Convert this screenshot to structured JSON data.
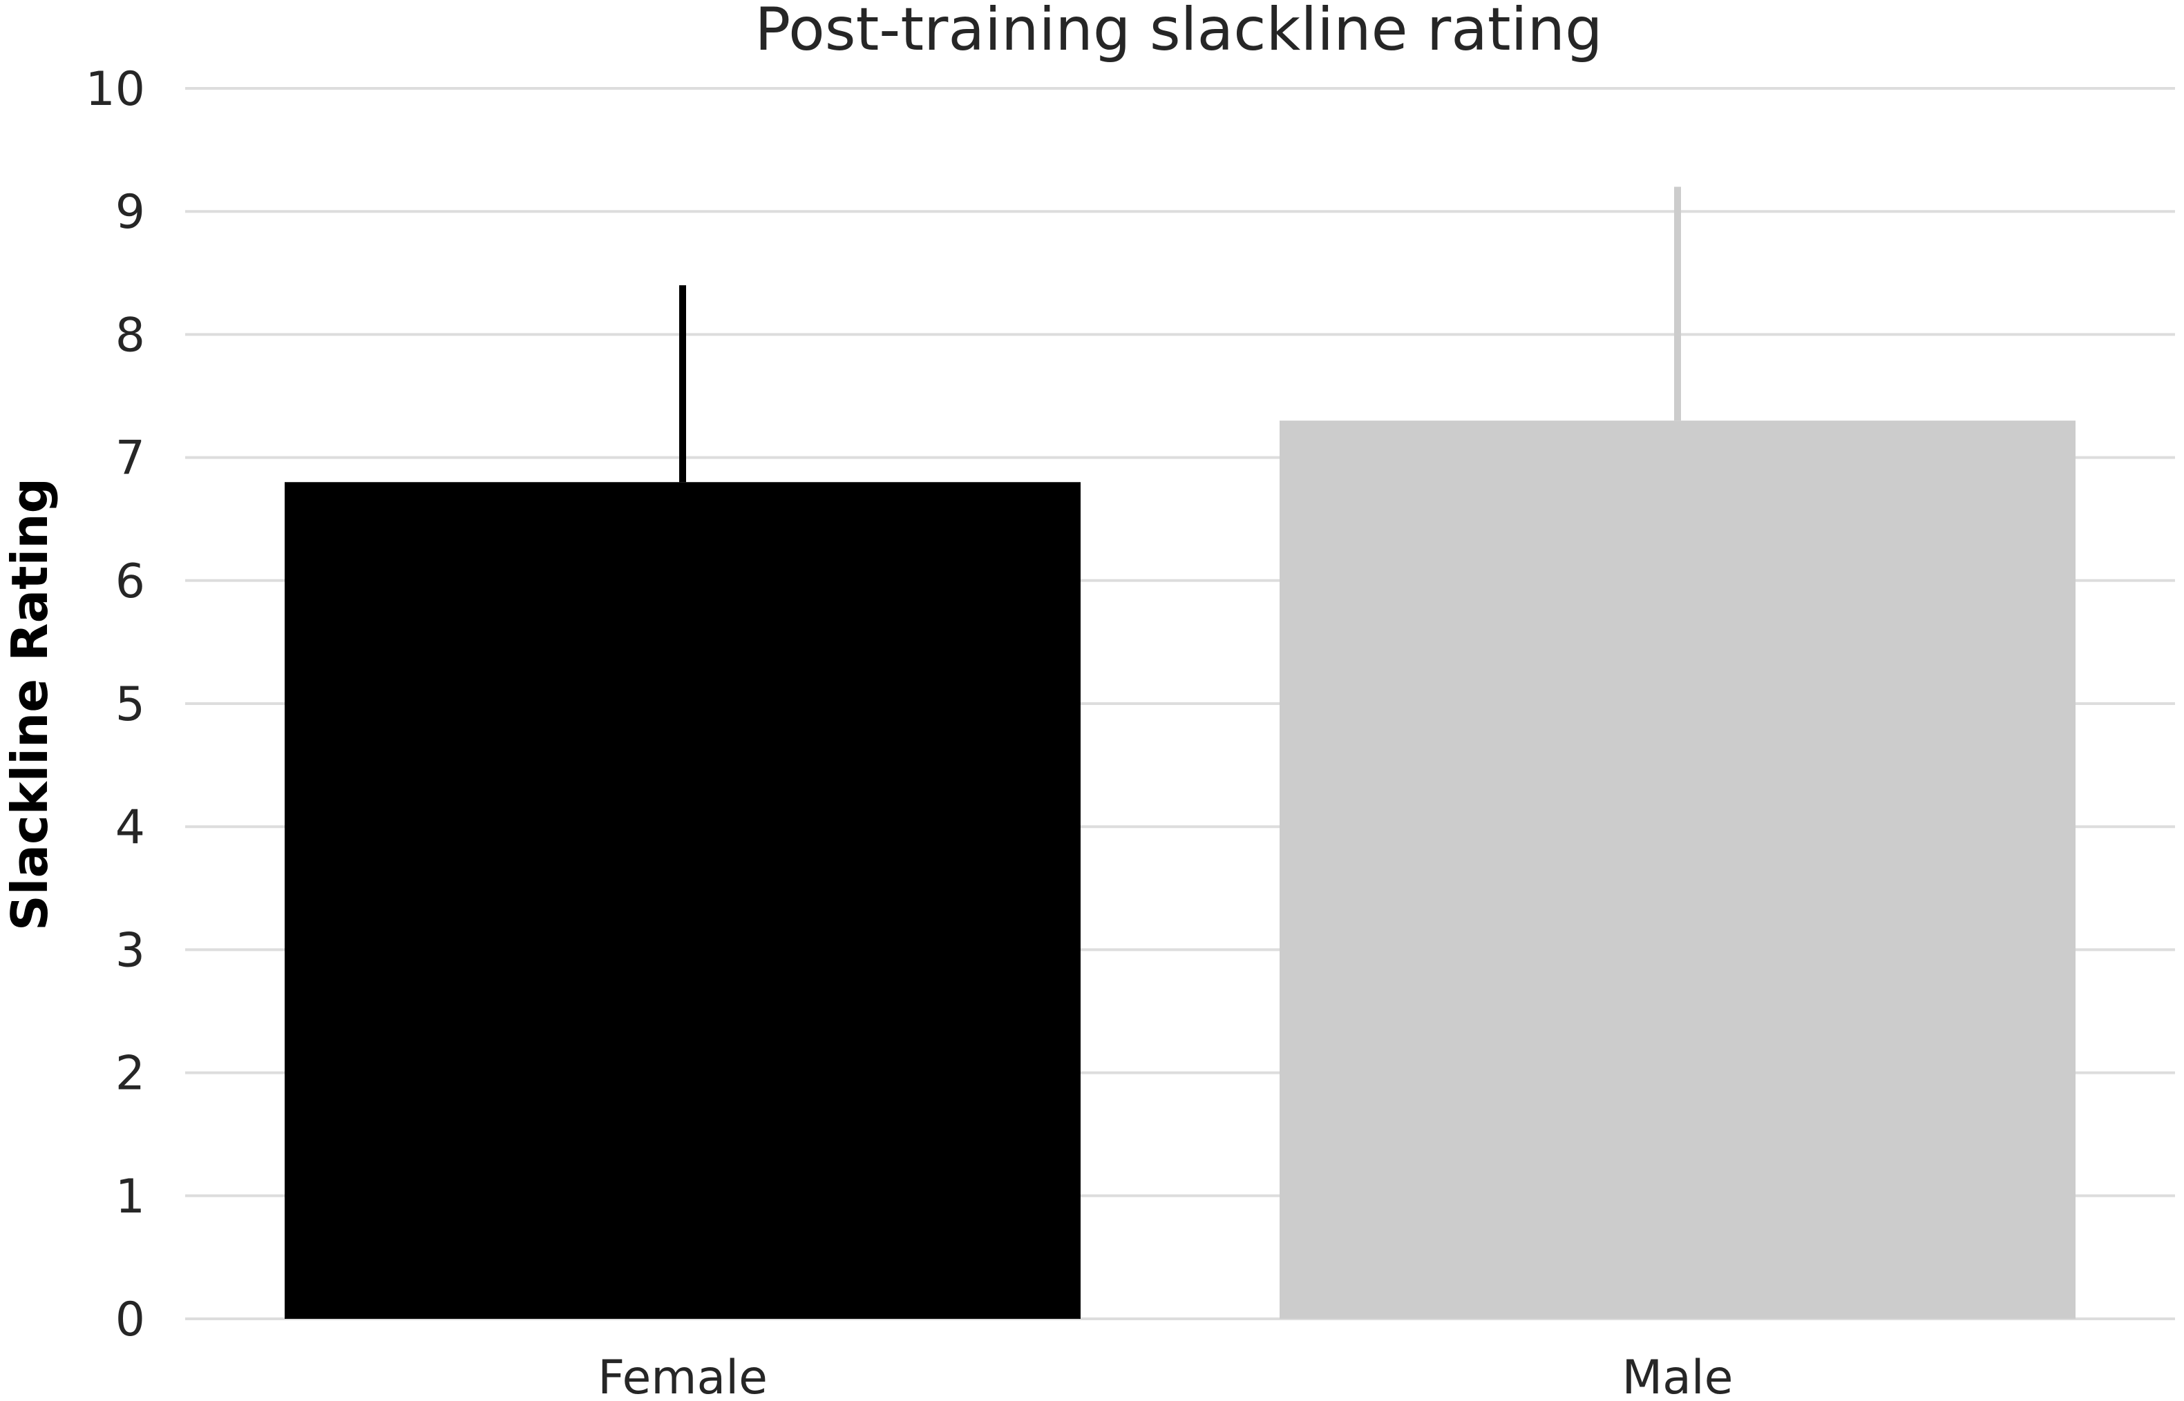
{
  "chart_data": {
    "type": "bar",
    "title": "Post-training slackline rating",
    "xlabel": "",
    "ylabel": "Slackline Rating",
    "categories": [
      "Female",
      "Male"
    ],
    "values": [
      6.8,
      7.3
    ],
    "error_upper": [
      8.4,
      9.2
    ],
    "colors": [
      "#000000",
      "#cccccc"
    ],
    "ylim": [
      0,
      10
    ],
    "yticks": [
      "0",
      "1",
      "2",
      "3",
      "4",
      "5",
      "6",
      "7",
      "8",
      "9",
      "10"
    ],
    "grid": true,
    "legend": "none"
  }
}
